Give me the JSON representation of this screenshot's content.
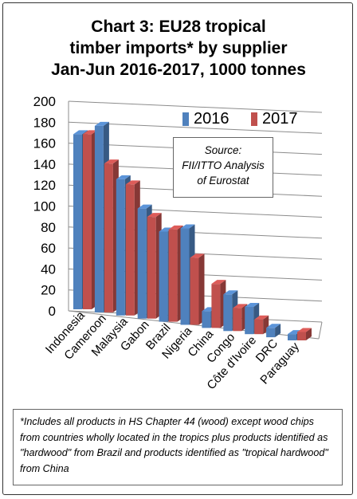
{
  "chart_data": {
    "type": "bar",
    "title_lines": [
      "Chart 3: EU28 tropical",
      "timber imports* by supplier",
      "Jan-Jun 2016-2017, 1000 tonnes"
    ],
    "categories": [
      "Indonesia",
      "Cameroon",
      "Malaysia",
      "Gabon",
      "Brazil",
      "Nigeria",
      "China",
      "Congo",
      "Côte d'Ivoire",
      "DRC",
      "Paraguay"
    ],
    "series": [
      {
        "name": "2016",
        "color": "#4F81BD",
        "values": [
          167,
          178,
          130,
          105,
          86,
          92,
          16,
          35,
          26,
          9,
          6
        ]
      },
      {
        "name": "2017",
        "color": "#C0504D",
        "values": [
          167,
          142,
          125,
          97,
          88,
          64,
          42,
          22,
          14,
          0,
          8
        ]
      }
    ],
    "ylim": [
      0,
      200
    ],
    "yticks": [
      "0",
      "20",
      "40",
      "60",
      "80",
      "100",
      "120",
      "140",
      "160",
      "180",
      "200"
    ],
    "grid": true,
    "legend_position": "top-right",
    "three_d": true
  },
  "source_box": {
    "lines": [
      "Source:",
      "FII/ITTO Analysis",
      "of Eurostat"
    ]
  },
  "footnote": "*Includes all products in HS Chapter 44 (wood) except wood chips from countries wholly located in the tropics plus products identified as \"hardwood\" from Brazil and products identified as \"tropical hardwood\" from China"
}
